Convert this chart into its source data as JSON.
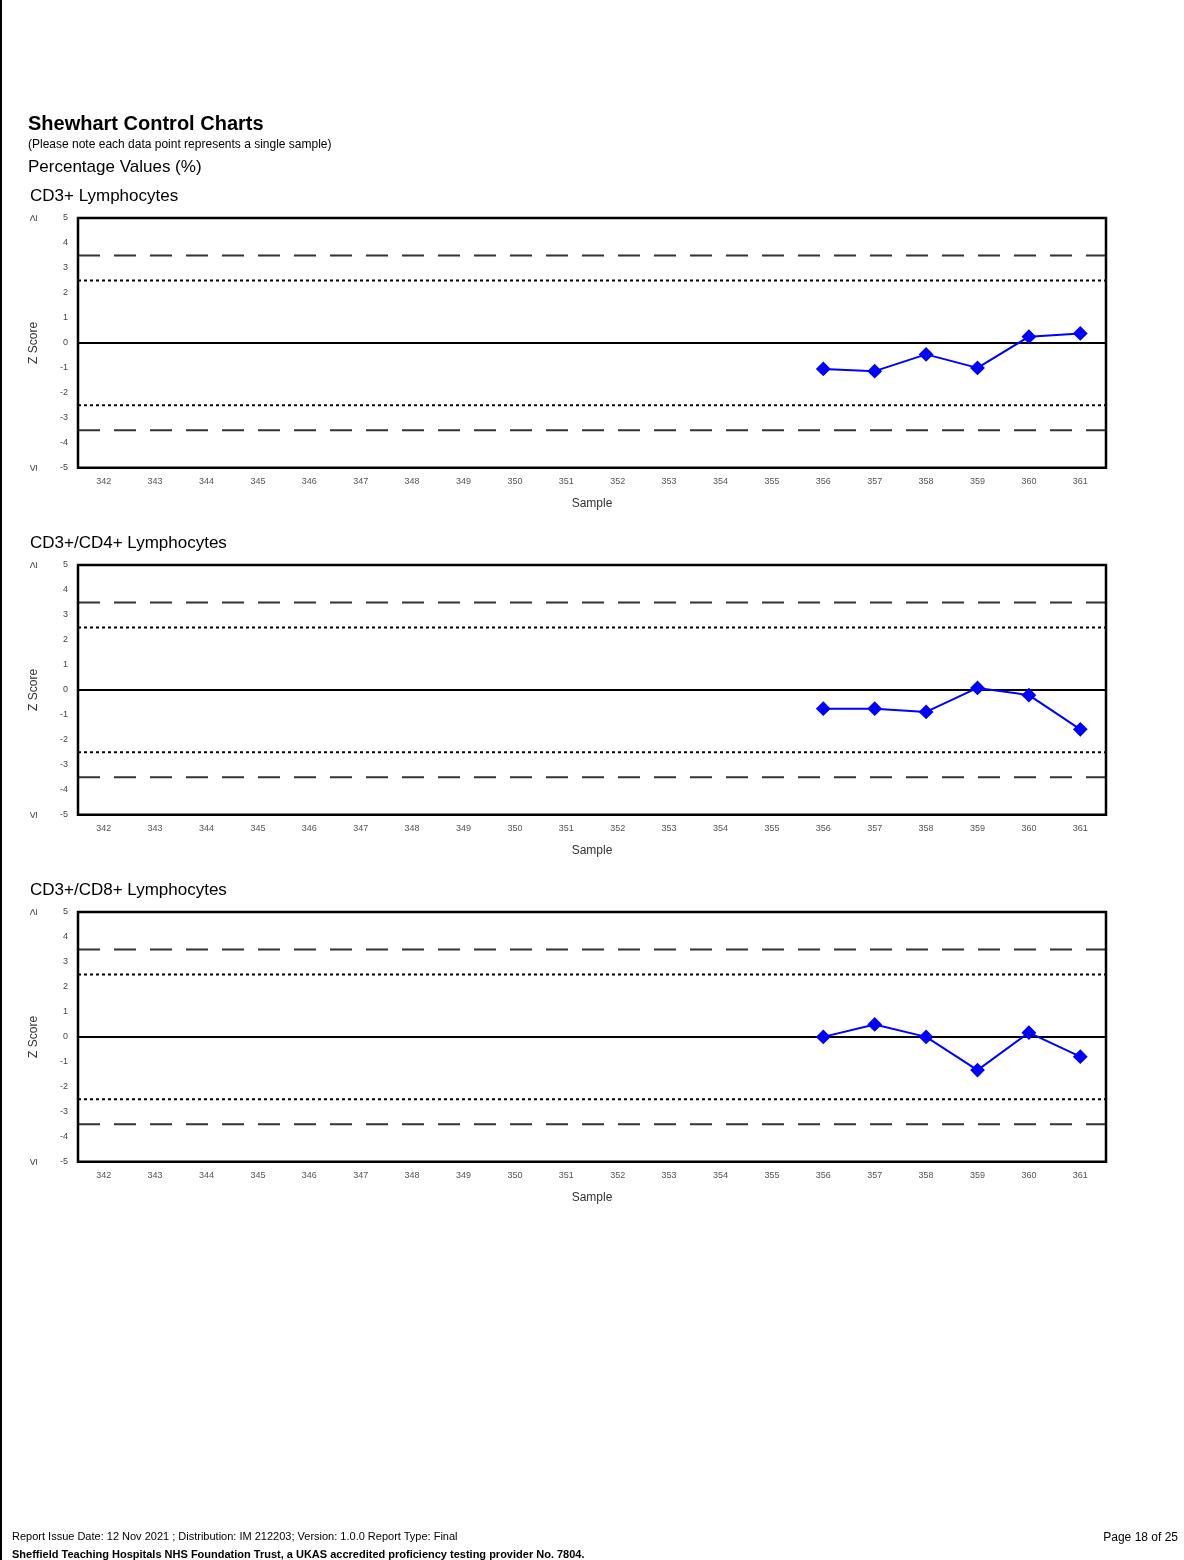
{
  "chart_data": [
    {
      "type": "other",
      "title": "Shewhart Control Charts",
      "subtitle": "(Please note each data point represents a single sample)",
      "annotations": [
        "Percentage Values (%)"
      ]
    },
    {
      "type": "line",
      "title": "CD3+ Lymphocytes",
      "xlabel": "Sample",
      "ylabel": "Z Score",
      "categories": [
        "342",
        "343",
        "344",
        "345",
        "346",
        "347",
        "348",
        "349",
        "350",
        "351",
        "352",
        "353",
        "354",
        "355",
        "356",
        "357",
        "358",
        "359",
        "360",
        "361"
      ],
      "series": [
        {
          "color": "#0000ff",
          "values": [
            null,
            null,
            null,
            null,
            null,
            null,
            null,
            null,
            null,
            null,
            null,
            null,
            null,
            null,
            -1.04,
            -1.13,
            -0.46,
            -1.0,
            0.25,
            0.38
          ]
        }
      ],
      "annotations": [
        "≥",
        "≤"
      ],
      "ylim": [
        -5,
        5
      ],
      "yticks": [
        -5,
        -4,
        -3,
        -2,
        -1,
        0,
        1,
        2,
        3,
        4,
        5
      ],
      "grid": false,
      "legend": false,
      "marker": "diamond",
      "line_style": "solid",
      "ref_lines": [
        {
          "axis": "y",
          "value": 0,
          "color": "#000000",
          "line_style": "solid"
        },
        {
          "axis": "y",
          "value": 2.5,
          "color": "#000000",
          "line_style": "dotted"
        },
        {
          "axis": "y",
          "value": -2.5,
          "color": "#000000",
          "line_style": "dotted"
        },
        {
          "axis": "y",
          "value": 3.5,
          "color": "#333333",
          "line_style": "dashed"
        },
        {
          "axis": "y",
          "value": -3.5,
          "color": "#333333",
          "line_style": "dashed"
        }
      ]
    },
    {
      "type": "line",
      "title": "CD3+/CD4+ Lymphocytes",
      "xlabel": "Sample",
      "ylabel": "Z Score",
      "categories": [
        "342",
        "343",
        "344",
        "345",
        "346",
        "347",
        "348",
        "349",
        "350",
        "351",
        "352",
        "353",
        "354",
        "355",
        "356",
        "357",
        "358",
        "359",
        "360",
        "361"
      ],
      "series": [
        {
          "color": "#0000ff",
          "values": [
            null,
            null,
            null,
            null,
            null,
            null,
            null,
            null,
            null,
            null,
            null,
            null,
            null,
            null,
            -0.75,
            -0.75,
            -0.88,
            0.08,
            -0.21,
            -1.58
          ]
        }
      ],
      "annotations": [
        "≥",
        "≤"
      ],
      "ylim": [
        -5,
        5
      ],
      "yticks": [
        -5,
        -4,
        -3,
        -2,
        -1,
        0,
        1,
        2,
        3,
        4,
        5
      ],
      "grid": false,
      "legend": false,
      "marker": "diamond",
      "line_style": "solid",
      "ref_lines": [
        {
          "axis": "y",
          "value": 0,
          "color": "#000000",
          "line_style": "solid"
        },
        {
          "axis": "y",
          "value": 2.5,
          "color": "#000000",
          "line_style": "dotted"
        },
        {
          "axis": "y",
          "value": -2.5,
          "color": "#000000",
          "line_style": "dotted"
        },
        {
          "axis": "y",
          "value": 3.5,
          "color": "#333333",
          "line_style": "dashed"
        },
        {
          "axis": "y",
          "value": -3.5,
          "color": "#333333",
          "line_style": "dashed"
        }
      ]
    },
    {
      "type": "line",
      "title": "CD3+/CD8+ Lymphocytes",
      "xlabel": "Sample",
      "ylabel": "Z Score",
      "categories": [
        "342",
        "343",
        "344",
        "345",
        "346",
        "347",
        "348",
        "349",
        "350",
        "351",
        "352",
        "353",
        "354",
        "355",
        "356",
        "357",
        "358",
        "359",
        "360",
        "361"
      ],
      "series": [
        {
          "color": "#0000ff",
          "values": [
            null,
            null,
            null,
            null,
            null,
            null,
            null,
            null,
            null,
            null,
            null,
            null,
            null,
            null,
            0.0,
            0.5,
            0.0,
            -1.33,
            0.17,
            -0.79
          ]
        }
      ],
      "annotations": [
        "≥",
        "≤"
      ],
      "ylim": [
        -5,
        5
      ],
      "yticks": [
        -5,
        -4,
        -3,
        -2,
        -1,
        0,
        1,
        2,
        3,
        4,
        5
      ],
      "grid": false,
      "legend": false,
      "marker": "diamond",
      "line_style": "solid",
      "ref_lines": [
        {
          "axis": "y",
          "value": 0,
          "color": "#000000",
          "line_style": "solid"
        },
        {
          "axis": "y",
          "value": 2.5,
          "color": "#000000",
          "line_style": "dotted"
        },
        {
          "axis": "y",
          "value": -2.5,
          "color": "#000000",
          "line_style": "dotted"
        },
        {
          "axis": "y",
          "value": 3.5,
          "color": "#333333",
          "line_style": "dashed"
        },
        {
          "axis": "y",
          "value": -3.5,
          "color": "#333333",
          "line_style": "dashed"
        }
      ]
    },
    {
      "type": "other",
      "annotations": [
        "Report Issue Date: 12 Nov 2021 ; Distribution: IM 212203; Version: 1.0.0 Report Type: Final",
        "Page 18 of 25",
        "Sheffield Teaching Hospitals NHS Foundation Trust, a UKAS accredited proficiency testing provider No. 7804."
      ]
    }
  ]
}
